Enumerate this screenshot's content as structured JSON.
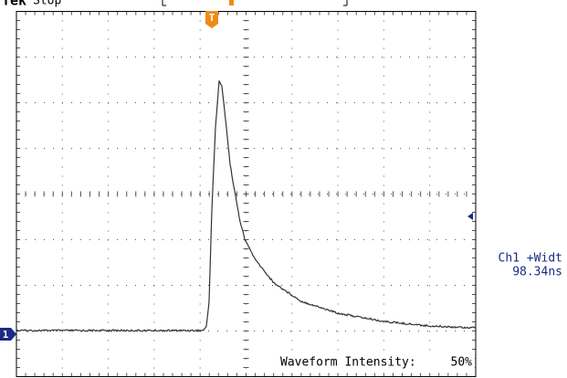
{
  "header": {
    "brand": "Tek",
    "status": "Stop"
  },
  "trigger_marker": "T",
  "channel_marker": "1",
  "measurement": {
    "label": "Ch1 +Widt",
    "value": "98.34ns"
  },
  "footer": {
    "label": "Waveform Intensity:",
    "value": "50%"
  }
}
